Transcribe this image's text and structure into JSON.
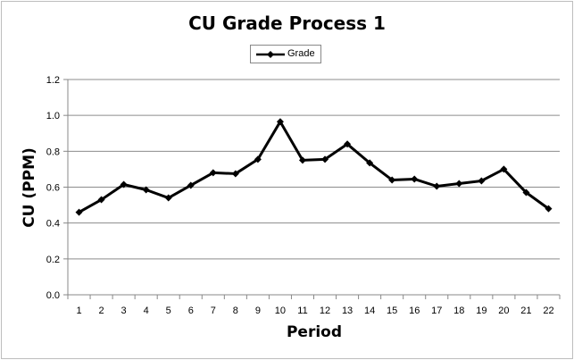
{
  "chart_data": {
    "type": "line",
    "title": "CU Grade Process 1",
    "xlabel": "Period",
    "ylabel": "CU (PPM)",
    "categories": [
      "1",
      "2",
      "3",
      "4",
      "5",
      "6",
      "7",
      "8",
      "9",
      "10",
      "11",
      "12",
      "13",
      "14",
      "15",
      "16",
      "17",
      "18",
      "19",
      "20",
      "21",
      "22"
    ],
    "series": [
      {
        "name": "Grade",
        "color": "#000000",
        "marker": "diamond",
        "values": [
          0.46,
          0.53,
          0.615,
          0.585,
          0.54,
          0.61,
          0.68,
          0.675,
          0.755,
          0.965,
          0.75,
          0.755,
          0.84,
          0.735,
          0.64,
          0.645,
          0.605,
          0.62,
          0.635,
          0.7,
          0.57,
          0.48
        ]
      }
    ],
    "ylim": [
      0,
      1.2
    ],
    "yticks": [
      "0.0",
      "0.2",
      "0.4",
      "0.6",
      "0.8",
      "1.0",
      "1.2"
    ],
    "grid": true,
    "legend": "top-center"
  }
}
